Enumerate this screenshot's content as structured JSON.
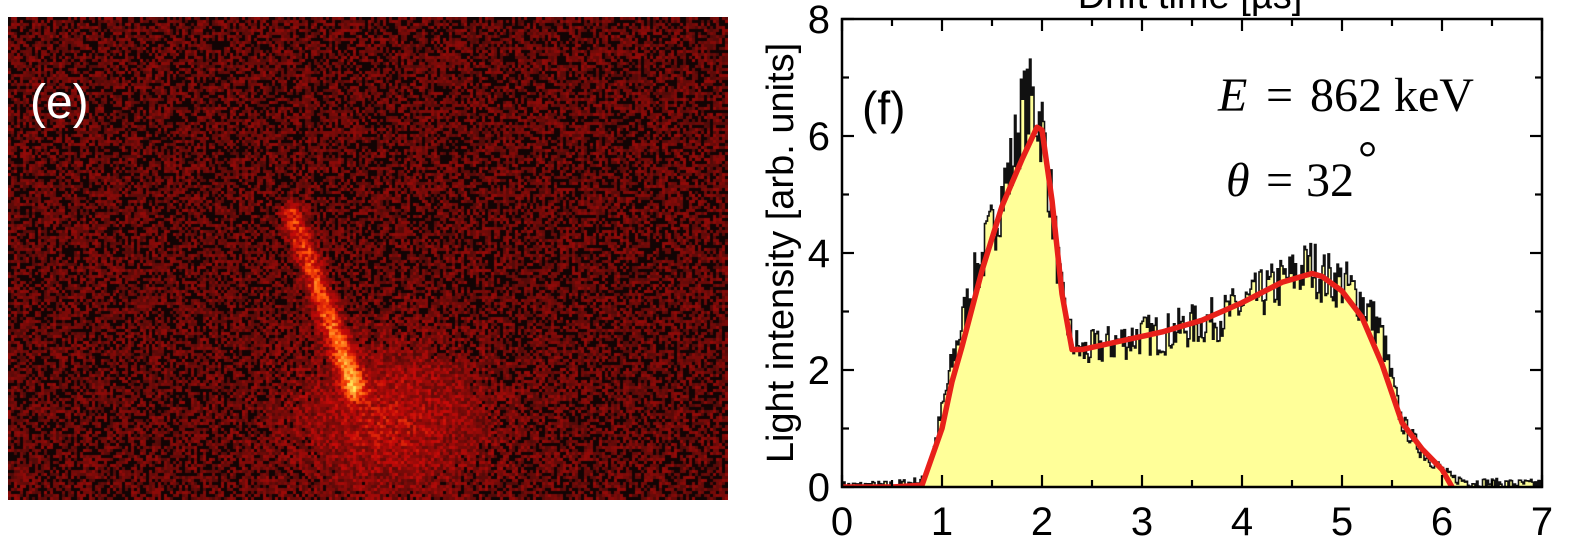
{
  "panel_e": {
    "label": "(e)",
    "colors": {
      "background": "#120404",
      "noise": "#b01a10",
      "track": "#ffee60"
    }
  },
  "chart_data": {
    "type": "area",
    "panel_label": "(f)",
    "top_axis_label": "Drift time [µs]",
    "xlabel": "",
    "ylabel": "Light intensity [arb. units]",
    "xlim": [
      0,
      7
    ],
    "ylim": [
      0,
      8
    ],
    "xticks": [
      0,
      1,
      2,
      3,
      4,
      5,
      6,
      7
    ],
    "yticks": [
      0,
      2,
      4,
      6,
      8
    ],
    "annotations": {
      "energy": {
        "symbol": "E",
        "equals": "=",
        "value": "862 keV"
      },
      "angle": {
        "symbol": "θ",
        "equals": "=",
        "value": "32",
        "unit": "°"
      }
    },
    "series": [
      {
        "kind": "histogram",
        "fill": "#ffff99",
        "stroke": "#111111",
        "x": [
          0,
          0.5,
          0.8,
          0.9,
          1.0,
          1.1,
          1.2,
          1.3,
          1.4,
          1.5,
          1.6,
          1.7,
          1.8,
          1.9,
          2.0,
          2.1,
          2.2,
          2.3,
          2.4,
          2.6,
          2.8,
          3.0,
          3.2,
          3.4,
          3.6,
          3.8,
          4.0,
          4.2,
          4.4,
          4.6,
          4.7,
          4.8,
          5.0,
          5.2,
          5.4,
          5.5,
          5.6,
          5.8,
          6.0,
          6.1,
          6.3,
          6.6,
          7.0
        ],
        "y": [
          0.02,
          0.03,
          0.1,
          0.5,
          1.3,
          2.1,
          2.8,
          3.4,
          3.9,
          4.4,
          5.0,
          5.5,
          6.4,
          6.6,
          6.2,
          4.8,
          3.2,
          2.5,
          2.3,
          2.4,
          2.5,
          2.6,
          2.6,
          2.7,
          2.8,
          2.9,
          3.1,
          3.3,
          3.5,
          3.7,
          3.8,
          3.6,
          3.5,
          3.2,
          2.6,
          1.8,
          1.1,
          0.6,
          0.3,
          0.15,
          0.08,
          0.06,
          0.05
        ]
      },
      {
        "kind": "fit",
        "color": "#e8201a",
        "x": [
          0,
          0.5,
          0.8,
          1.0,
          1.1,
          1.2,
          1.4,
          1.6,
          1.8,
          1.95,
          2.0,
          2.1,
          2.2,
          2.3,
          2.4,
          2.8,
          3.2,
          3.6,
          4.0,
          4.4,
          4.7,
          4.8,
          5.0,
          5.2,
          5.4,
          5.5,
          5.6,
          5.8,
          6.0,
          6.1
        ],
        "y": [
          0.0,
          0.0,
          0.03,
          1.0,
          1.8,
          2.4,
          3.7,
          4.8,
          5.6,
          6.15,
          6.1,
          4.9,
          3.3,
          2.35,
          2.35,
          2.5,
          2.65,
          2.85,
          3.15,
          3.5,
          3.65,
          3.6,
          3.35,
          2.9,
          2.1,
          1.6,
          1.1,
          0.65,
          0.3,
          0.0
        ]
      }
    ]
  }
}
